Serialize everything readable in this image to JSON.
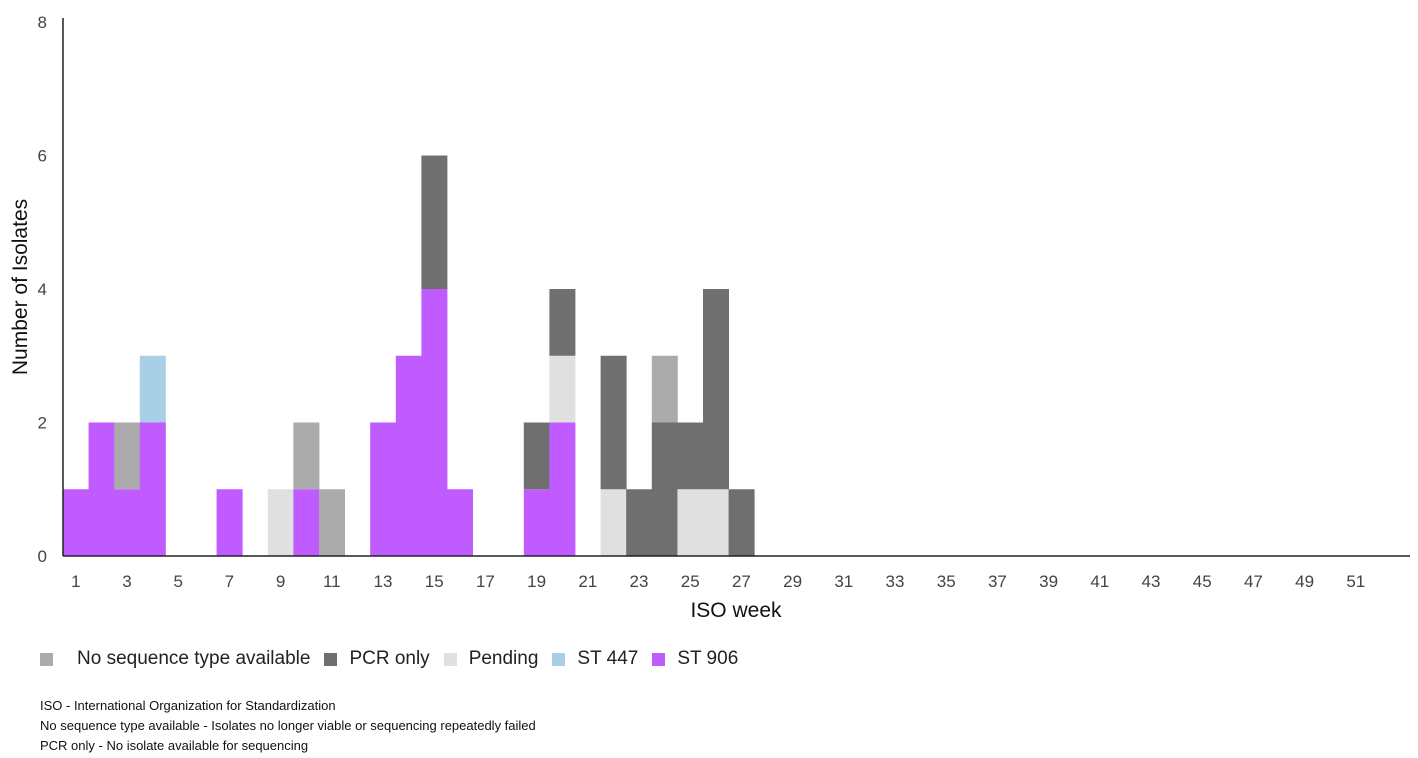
{
  "chart_data": {
    "type": "bar",
    "stacked": true,
    "xlabel": "ISO week",
    "ylabel": "Number of Isolates",
    "ylim": [
      0,
      8
    ],
    "yticks": [
      0,
      2,
      4,
      6,
      8
    ],
    "x": [
      1,
      2,
      3,
      4,
      5,
      6,
      7,
      8,
      9,
      10,
      11,
      12,
      13,
      14,
      15,
      16,
      17,
      18,
      19,
      20,
      21,
      22,
      23,
      24,
      25,
      26,
      27,
      28,
      29,
      30,
      31,
      32,
      33,
      34,
      35,
      36,
      37,
      38,
      39,
      40,
      41,
      42,
      43,
      44,
      45,
      46,
      47,
      48,
      49,
      50,
      51,
      52,
      53
    ],
    "xtick_labels": [
      "1",
      "3",
      "5",
      "7",
      "9",
      "11",
      "13",
      "15",
      "17",
      "19",
      "21",
      "23",
      "25",
      "27",
      "29",
      "31",
      "33",
      "35",
      "37",
      "39",
      "41",
      "43",
      "45",
      "47",
      "49",
      "51"
    ],
    "series": [
      {
        "name": "ST 906",
        "color": "#bf5bff",
        "values": {
          "1": 1,
          "2": 2,
          "3": 1,
          "4": 2,
          "7": 1,
          "10": 1,
          "13": 2,
          "14": 3,
          "15": 4,
          "16": 1,
          "19": 1,
          "20": 2
        }
      },
      {
        "name": "ST 447",
        "color": "#a9cfe6",
        "values": {
          "4": 1
        }
      },
      {
        "name": "Pending",
        "color": "#e0e0e0",
        "values": {
          "9": 1,
          "20": 1,
          "22": 1,
          "25": 1,
          "26": 1
        }
      },
      {
        "name": "PCR only",
        "color": "#6f6f6f",
        "values": {
          "15": 2,
          "19": 1,
          "20": 1,
          "22": 2,
          "23": 1,
          "24": 2,
          "25": 1,
          "26": 3,
          "27": 1
        }
      },
      {
        "name": "No sequence type available",
        "color": "#ababab",
        "values": {
          "3": 1,
          "10": 1,
          "11": 1,
          "24": 1
        }
      }
    ],
    "legend": {
      "placement": "bottom-left",
      "order": [
        "No sequence type available",
        "PCR only",
        "Pending",
        "ST 447",
        "ST 906"
      ]
    }
  },
  "notes": [
    "ISO - International Organization for Standardization",
    "No sequence type available - Isolates no longer viable or sequencing repeatedly failed",
    "PCR only - No isolate available for sequencing"
  ]
}
